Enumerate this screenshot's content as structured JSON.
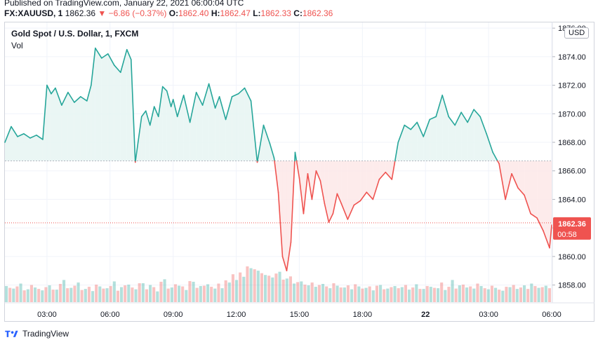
{
  "header": {
    "published_line": "Published on TradingView.com, January 22, 2021 06:00:04 UTC",
    "quote": {
      "symbol": "FX:XAUUSD, 1",
      "last": "1862.36",
      "change": "−6.86 (−0.37%)",
      "o_label": "O:",
      "o_value": "1862.40",
      "h_label": "H:",
      "h_value": "1862.47",
      "l_label": "L:",
      "l_value": "1862.33",
      "c_label": "C:",
      "c_value": "1862.36"
    }
  },
  "legend": {
    "title": "Gold Spot / U.S. Dollar, 1, FXCM",
    "vol": "Vol"
  },
  "currency_badge": "USD",
  "colors": {
    "up": "#26a69a",
    "down": "#ef5350",
    "up_fill": "#e6f4f2",
    "down_fill": "#fde8e8",
    "grid": "#f0f3fa",
    "baseline": "#b2b5be"
  },
  "price_badges": {
    "last_price": "1862.36",
    "countdown": "00:58"
  },
  "footer": {
    "brand": "TradingView"
  },
  "chart_data": {
    "type": "line",
    "style": "baseline",
    "baseline_value": 1866.7,
    "x_tick_labels": [
      "03:00",
      "06:00",
      "09:00",
      "12:00",
      "15:00",
      "18:00",
      "22",
      "03:00",
      "06:00"
    ],
    "y_tick_labels": [
      "1858.00",
      "1860.00",
      "1862.00",
      "1864.00",
      "1866.00",
      "1868.00",
      "1870.00",
      "1872.00",
      "1874.00",
      "1876.00"
    ],
    "ylim": [
      1856.8,
      1876.4
    ],
    "xlim": [
      0,
      26
    ],
    "last_value": 1862.36,
    "series": [
      {
        "x": [
          0,
          0.3,
          0.6,
          0.9,
          1.2,
          1.5,
          1.8,
          2.0,
          2.2,
          2.4,
          2.7,
          3.0,
          3.3,
          3.6,
          3.9,
          4.1,
          4.3,
          4.6,
          4.9,
          5.2,
          5.5,
          5.8,
          6.0,
          6.2,
          6.5,
          6.7,
          6.9,
          7.1,
          7.3,
          7.5,
          7.7,
          7.9,
          8.0,
          8.2,
          8.5,
          8.8,
          9.1,
          9.4,
          9.7,
          10.0,
          10.2,
          10.5,
          10.8,
          11.1,
          11.4,
          11.7,
          12.0,
          12.3,
          12.6,
          12.8,
          13.0,
          13.2,
          13.4,
          13.6,
          13.8,
          14.0,
          14.2,
          14.4,
          14.6,
          14.8,
          15.0,
          15.2,
          15.4,
          15.6,
          15.8,
          16.0,
          16.3,
          16.6,
          16.9,
          17.2,
          17.5,
          17.8,
          18.1,
          18.4,
          18.7,
          19.0,
          19.3,
          19.6,
          19.9,
          20.2,
          20.5,
          20.8,
          21.1,
          21.4,
          21.7,
          22.0,
          22.3,
          22.6,
          22.9,
          23.2,
          23.5,
          23.8,
          24.1,
          24.4,
          24.7,
          25.0,
          25.3,
          25.6,
          25.9,
          26.0
        ],
        "y": [
          1868.0,
          1869.1,
          1868.4,
          1868.6,
          1868.3,
          1868.5,
          1868.2,
          1872.0,
          1871.4,
          1871.8,
          1870.6,
          1871.5,
          1870.8,
          1871.2,
          1870.9,
          1872.0,
          1874.6,
          1873.9,
          1874.2,
          1873.4,
          1872.9,
          1874.5,
          1873.8,
          1866.6,
          1869.8,
          1870.2,
          1869.2,
          1870.5,
          1869.8,
          1871.9,
          1871.6,
          1870.5,
          1871.0,
          1869.8,
          1871.3,
          1869.4,
          1871.5,
          1870.6,
          1872.1,
          1870.4,
          1871.2,
          1869.6,
          1871.2,
          1871.4,
          1871.8,
          1870.9,
          1866.6,
          1869.2,
          1867.9,
          1866.9,
          1864.5,
          1860.0,
          1859.0,
          1861.0,
          1867.3,
          1865.5,
          1863.0,
          1865.8,
          1864.0,
          1866.0,
          1865.3,
          1863.7,
          1862.4,
          1863.0,
          1864.4,
          1863.7,
          1862.6,
          1863.6,
          1863.9,
          1864.5,
          1864.0,
          1865.4,
          1865.9,
          1865.4,
          1868.0,
          1869.2,
          1868.9,
          1869.4,
          1868.4,
          1869.6,
          1869.8,
          1871.3,
          1869.8,
          1869.2,
          1870.1,
          1869.4,
          1870.3,
          1869.8,
          1868.6,
          1867.3,
          1866.5,
          1864.0,
          1865.8,
          1864.8,
          1864.3,
          1863.0,
          1862.7,
          1861.8,
          1860.6,
          1862.2
        ]
      }
    ],
    "volume": {
      "note": "per-bar volume on a relative scale",
      "values_up": [
        0.45,
        0.38,
        0.52,
        0.36,
        0.41,
        0.33,
        0.47,
        0.35,
        0.62,
        0.4,
        0.55,
        0.37,
        0.31,
        0.44,
        0.39,
        0.58,
        0.42,
        0.49,
        0.36,
        0.53,
        0.48,
        0.3,
        0.64,
        0.41,
        0.46,
        0.34,
        0.57,
        0.45,
        0.5,
        0.38,
        0.39,
        0.55,
        0.62,
        0.71,
        0.95,
        0.88,
        0.76,
        0.69,
        0.85,
        0.66,
        0.52,
        0.58,
        0.47,
        0.43,
        0.51,
        0.39,
        0.46,
        0.41,
        0.36,
        0.44,
        0.4,
        0.33,
        0.48,
        0.38,
        0.45,
        0.42,
        0.35,
        0.5,
        0.37,
        0.43,
        0.39,
        0.34,
        0.62,
        0.47,
        0.41,
        0.38,
        0.45,
        0.36,
        0.4,
        0.32,
        0.42,
        0.37,
        0.47,
        0.52,
        0.4,
        0.46
      ],
      "values_down": [
        0.4,
        0.44,
        0.33,
        0.48,
        0.37,
        0.42,
        0.35,
        0.51,
        0.39,
        0.46,
        0.34,
        0.43,
        0.49,
        0.38,
        0.45,
        0.32,
        0.47,
        0.41,
        0.53,
        0.36,
        0.42,
        0.57,
        0.38,
        0.5,
        0.44,
        0.59,
        0.4,
        0.46,
        0.43,
        0.52,
        0.61,
        0.78,
        0.83,
        1.0,
        0.92,
        0.81,
        0.74,
        0.8,
        0.63,
        0.72,
        0.56,
        0.49,
        0.55,
        0.48,
        0.44,
        0.53,
        0.41,
        0.47,
        0.5,
        0.38,
        0.44,
        0.46,
        0.36,
        0.42,
        0.39,
        0.48,
        0.41,
        0.37,
        0.45,
        0.4,
        0.55,
        0.43,
        0.38,
        0.49,
        0.44,
        0.52,
        0.39,
        0.46,
        0.35,
        0.43,
        0.48,
        0.41,
        0.37,
        0.45,
        0.42,
        0.39
      ]
    }
  }
}
